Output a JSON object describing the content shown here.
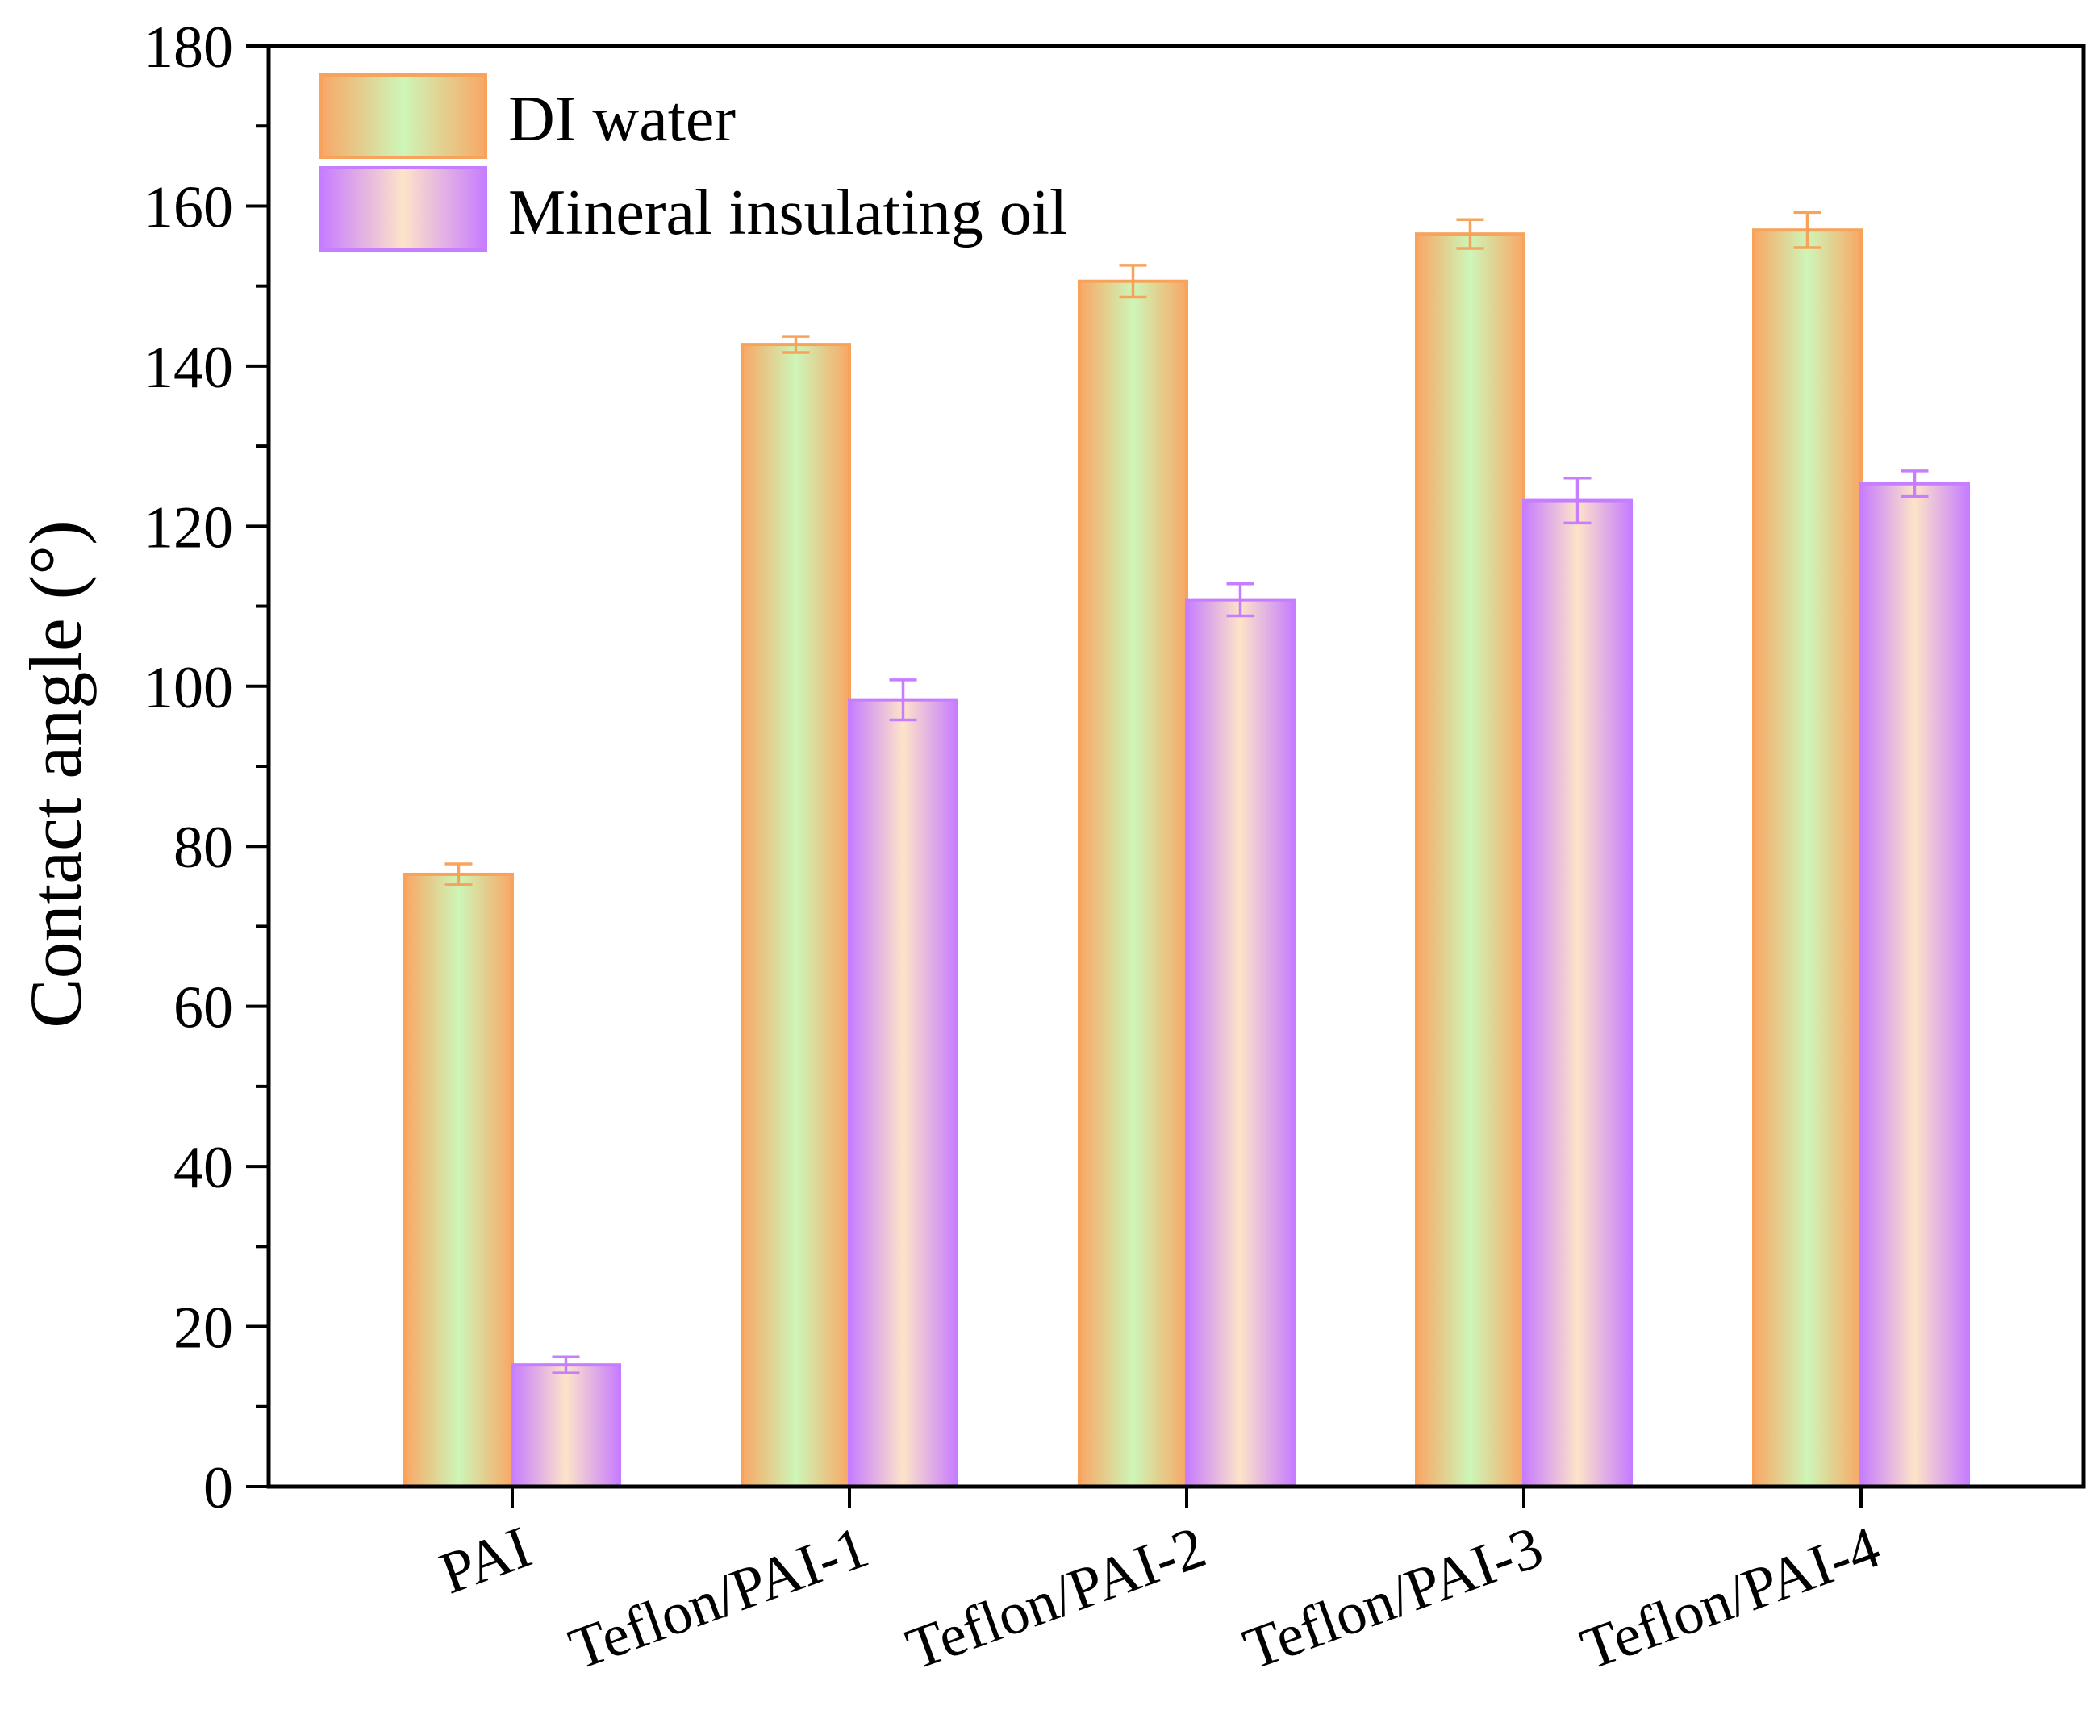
{
  "chart_data": {
    "type": "bar",
    "title": "",
    "xlabel": "",
    "ylabel": "Contact angle (°)",
    "ylim": [
      0,
      180
    ],
    "yticks": [
      0,
      20,
      40,
      60,
      80,
      100,
      120,
      140,
      160,
      180
    ],
    "categories": [
      "PAI",
      "Teflon/PAI-1",
      "Teflon/PAI-2",
      "Teflon/PAI-3",
      "Teflon/PAI-4"
    ],
    "series": [
      {
        "name": "DI water",
        "values": [
          76.5,
          142.7,
          150.6,
          156.5,
          157.0
        ],
        "errors": [
          1.3,
          1.0,
          2.0,
          1.8,
          2.2
        ],
        "colors": {
          "edge": "#F7A35C",
          "center": "#C8F5B4"
        }
      },
      {
        "name": "Mineral insulating oil",
        "values": [
          15.2,
          98.3,
          110.8,
          123.2,
          125.3
        ],
        "errors": [
          1.0,
          2.5,
          2.0,
          2.8,
          1.6
        ],
        "colors": {
          "edge": "#C77DFF",
          "center": "#FCE5C6"
        }
      }
    ],
    "legend_position": "top-left",
    "grid": false
  }
}
